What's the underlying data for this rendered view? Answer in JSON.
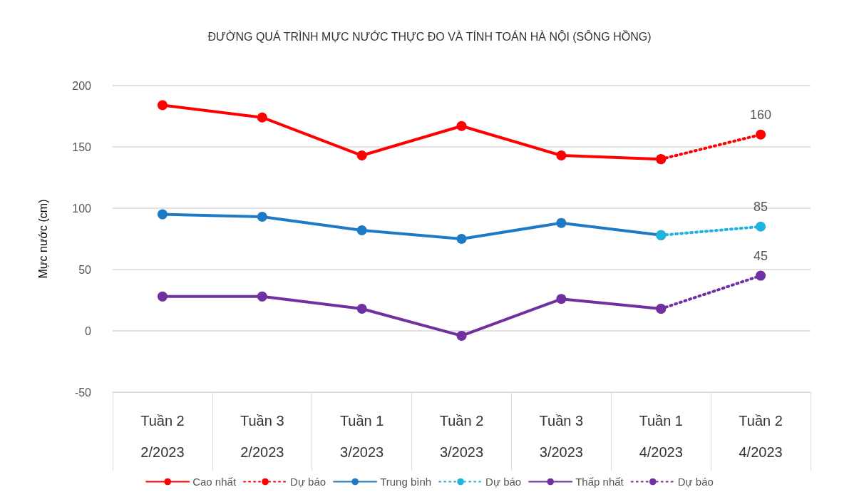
{
  "chart_data": {
    "type": "line",
    "title": "ĐƯỜNG QUÁ TRÌNH MỰC NƯỚC THỰC ĐO VÀ TÍNH TOÁN HÀ NỘI (SÔNG HỒNG)",
    "ylabel": "Mực nước (cm)",
    "categories": [
      "Tuần 2\n2/2023",
      "Tuần 3\n2/2023",
      "Tuần 1\n3/2023",
      "Tuần 2\n3/2023",
      "Tuần 3\n3/2023",
      "Tuần 1\n4/2023",
      "Tuần 2\n4/2023"
    ],
    "series": [
      {
        "name": "Cao nhất",
        "color": "#ff0000",
        "line_style": "solid",
        "values": [
          184,
          174,
          143,
          167,
          143,
          140,
          null
        ]
      },
      {
        "name": "Dự báo",
        "color": "#ff0000",
        "line_style": "dotted",
        "values": [
          null,
          null,
          null,
          null,
          null,
          140,
          160
        ],
        "value_labels": [
          null,
          null,
          null,
          null,
          null,
          null,
          "160"
        ]
      },
      {
        "name": "Trung bình",
        "color": "#1f7ac6",
        "line_style": "solid",
        "values": [
          95,
          93,
          82,
          75,
          88,
          78,
          null
        ]
      },
      {
        "name": "Dự báo",
        "color": "#1fb4e0",
        "line_style": "dotted",
        "values": [
          null,
          null,
          null,
          null,
          null,
          78,
          85
        ],
        "value_labels": [
          null,
          null,
          null,
          null,
          null,
          null,
          "85"
        ]
      },
      {
        "name": "Thấp nhất",
        "color": "#7030a0",
        "line_style": "solid",
        "values": [
          28,
          28,
          18,
          -4,
          26,
          18,
          null
        ]
      },
      {
        "name": "Dự báo",
        "color": "#7030a0",
        "line_style": "dotted",
        "values": [
          null,
          null,
          null,
          null,
          null,
          18,
          45
        ],
        "value_labels": [
          null,
          null,
          null,
          null,
          null,
          null,
          "45"
        ]
      }
    ],
    "ylim": [
      -50,
      200
    ],
    "yticks": [
      -50,
      0,
      50,
      100,
      150,
      200
    ],
    "grid": "y",
    "legend": "bottom",
    "marker": "circle"
  }
}
